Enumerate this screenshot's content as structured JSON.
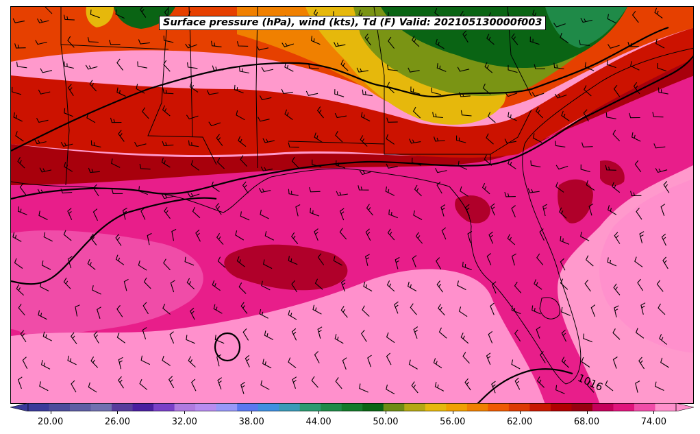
{
  "title": "Surface pressure (hPa), wind (kts), Td (F) Valid: 202105130000f003",
  "isobar_label": "1016",
  "colorbar": {
    "ticks": [
      "20.00",
      "26.00",
      "32.00",
      "38.00",
      "44.00",
      "50.00",
      "56.00",
      "62.00",
      "68.00",
      "74.00"
    ],
    "min": 18,
    "max": 76,
    "extend": "both",
    "colors": [
      "#3a3a9a",
      "#4c4c9c",
      "#5e5ea4",
      "#7070b0",
      "#583c9c",
      "#4a1fa0",
      "#7a40c8",
      "#b07ae0",
      "#b88cf0",
      "#9898f8",
      "#5a78f0",
      "#3f8fe0",
      "#3a9ab8",
      "#2c9a70",
      "#1f8a48",
      "#137a2a",
      "#0a6414",
      "#6e8c14",
      "#b4a812",
      "#e6b80c",
      "#f0a000",
      "#f08000",
      "#ee5a00",
      "#dd3a00",
      "#c81800",
      "#b00000",
      "#980010",
      "#c4005a",
      "#e0147c",
      "#f04ca8",
      "#ff90cc"
    ]
  },
  "legend": {
    "dewpoint_fill": "Td (F)",
    "isobars": "Surface pressure (hPa)",
    "barbs": "wind (kts)"
  }
}
